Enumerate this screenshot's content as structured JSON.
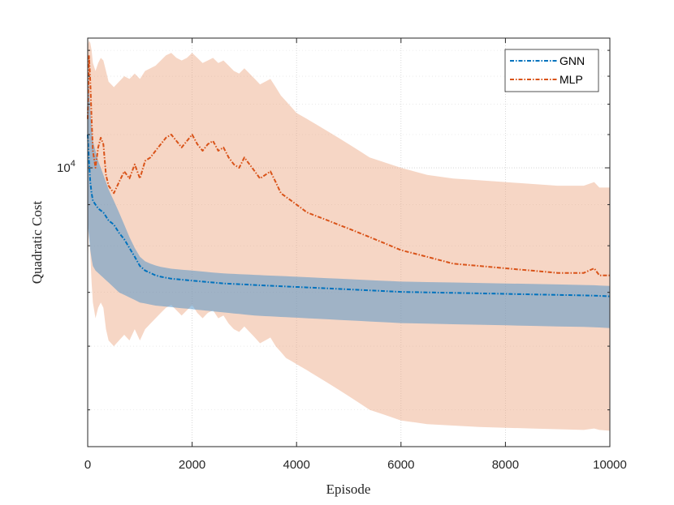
{
  "chart_data": {
    "type": "line",
    "title": "",
    "xlabel": "Episode",
    "ylabel": "Quadratic Cost",
    "xlim": [
      0,
      10000
    ],
    "yscale": "log",
    "ylim": [
      4500,
      14500
    ],
    "grid": true,
    "legend_position": "top-right",
    "x_ticks": [
      0,
      2000,
      4000,
      6000,
      8000,
      10000
    ],
    "x_tick_labels": [
      "0",
      "2000",
      "4000",
      "6000",
      "8000",
      "10000"
    ],
    "y_major_tick": 10000,
    "y_major_tick_label_base": "10",
    "y_major_tick_label_exp": "4",
    "y_minor_ticks": [
      5000,
      6000,
      7000,
      8000,
      9000,
      11000,
      12000,
      13000,
      14000
    ],
    "x": [
      0,
      25,
      50,
      75,
      100,
      150,
      200,
      250,
      300,
      350,
      400,
      500,
      600,
      700,
      800,
      900,
      1000,
      1100,
      1200,
      1300,
      1400,
      1500,
      1600,
      1700,
      1800,
      1900,
      2000,
      2100,
      2200,
      2300,
      2400,
      2500,
      2600,
      2700,
      2800,
      2900,
      3000,
      3100,
      3200,
      3300,
      3400,
      3500,
      3600,
      3700,
      3800,
      3900,
      4000,
      4200,
      4400,
      4600,
      4800,
      5000,
      5200,
      5400,
      5600,
      5800,
      6000,
      6500,
      7000,
      7500,
      8000,
      8500,
      9000,
      9500,
      9700,
      9800,
      10000
    ],
    "series": [
      {
        "name": "GNN",
        "color": "#0072BD",
        "band_color": "#4A90C8",
        "line_style": "dash-dot",
        "values": [
          11000,
          10200,
          9600,
          9300,
          9100,
          9000,
          8900,
          8850,
          8800,
          8700,
          8600,
          8500,
          8300,
          8150,
          7950,
          7750,
          7550,
          7450,
          7400,
          7350,
          7320,
          7300,
          7280,
          7270,
          7260,
          7250,
          7240,
          7230,
          7220,
          7210,
          7200,
          7190,
          7180,
          7175,
          7170,
          7165,
          7160,
          7155,
          7150,
          7145,
          7140,
          7135,
          7130,
          7125,
          7120,
          7115,
          7110,
          7100,
          7090,
          7080,
          7070,
          7060,
          7050,
          7040,
          7030,
          7020,
          7010,
          7000,
          6990,
          6980,
          6970,
          6960,
          6950,
          6940,
          6935,
          6930,
          6920
        ],
        "band_lower": [
          8500,
          8200,
          7900,
          7700,
          7550,
          7450,
          7400,
          7350,
          7300,
          7250,
          7200,
          7100,
          7000,
          6950,
          6900,
          6850,
          6800,
          6780,
          6760,
          6740,
          6730,
          6720,
          6710,
          6700,
          6690,
          6680,
          6670,
          6660,
          6650,
          6640,
          6630,
          6620,
          6610,
          6600,
          6590,
          6580,
          6570,
          6560,
          6550,
          6545,
          6540,
          6535,
          6530,
          6525,
          6520,
          6515,
          6510,
          6500,
          6490,
          6480,
          6470,
          6460,
          6450,
          6440,
          6430,
          6420,
          6410,
          6400,
          6390,
          6380,
          6370,
          6360,
          6350,
          6340,
          6335,
          6330,
          6320
        ],
        "band_upper": [
          13500,
          12500,
          11800,
          11200,
          10800,
          10500,
          10200,
          10000,
          9800,
          9600,
          9400,
          9100,
          8800,
          8500,
          8200,
          7950,
          7750,
          7650,
          7600,
          7560,
          7530,
          7510,
          7490,
          7480,
          7470,
          7460,
          7450,
          7440,
          7430,
          7420,
          7410,
          7400,
          7390,
          7385,
          7380,
          7375,
          7370,
          7365,
          7360,
          7355,
          7350,
          7345,
          7340,
          7335,
          7330,
          7325,
          7320,
          7310,
          7300,
          7290,
          7280,
          7270,
          7260,
          7250,
          7240,
          7230,
          7220,
          7210,
          7200,
          7190,
          7180,
          7170,
          7160,
          7150,
          7145,
          7140,
          7130
        ]
      },
      {
        "name": "MLP",
        "color": "#D95319",
        "band_color": "#EBA37E",
        "line_style": "dash-dot",
        "values": [
          11500,
          13800,
          12800,
          11500,
          10500,
          10000,
          10600,
          10900,
          10700,
          9800,
          9500,
          9300,
          9600,
          9900,
          9700,
          10100,
          9700,
          10200,
          10300,
          10500,
          10700,
          10900,
          11000,
          10800,
          10600,
          10800,
          11000,
          10700,
          10500,
          10700,
          10800,
          10500,
          10600,
          10300,
          10100,
          10000,
          10300,
          10100,
          9900,
          9700,
          9800,
          9900,
          9600,
          9300,
          9200,
          9100,
          9000,
          8800,
          8700,
          8600,
          8500,
          8400,
          8300,
          8200,
          8100,
          8000,
          7900,
          7750,
          7600,
          7550,
          7500,
          7450,
          7400,
          7400,
          7500,
          7350,
          7350
        ],
        "band_lower": [
          7500,
          8500,
          7800,
          7200,
          6800,
          6500,
          6700,
          6800,
          6700,
          6300,
          6100,
          6000,
          6100,
          6200,
          6100,
          6300,
          6100,
          6300,
          6400,
          6500,
          6600,
          6700,
          6750,
          6650,
          6550,
          6650,
          6750,
          6600,
          6500,
          6600,
          6650,
          6500,
          6550,
          6400,
          6300,
          6250,
          6350,
          6250,
          6150,
          6050,
          6100,
          6150,
          6000,
          5900,
          5800,
          5750,
          5700,
          5600,
          5500,
          5400,
          5300,
          5200,
          5100,
          5000,
          4950,
          4900,
          4850,
          4800,
          4780,
          4760,
          4750,
          4740,
          4730,
          4720,
          4740,
          4720,
          4710
        ],
        "band_upper": [
          14200,
          14400,
          14300,
          14000,
          13500,
          13200,
          13500,
          13700,
          13600,
          13200,
          12800,
          12600,
          12800,
          13000,
          12900,
          13100,
          12900,
          13200,
          13300,
          13400,
          13600,
          13800,
          13900,
          13700,
          13600,
          13700,
          13900,
          13700,
          13500,
          13600,
          13700,
          13500,
          13600,
          13400,
          13200,
          13100,
          13300,
          13100,
          12900,
          12700,
          12800,
          12900,
          12600,
          12300,
          12100,
          11900,
          11700,
          11500,
          11300,
          11100,
          10900,
          10700,
          10500,
          10300,
          10200,
          10100,
          10000,
          9800,
          9700,
          9650,
          9600,
          9550,
          9500,
          9500,
          9600,
          9450,
          9450
        ]
      }
    ]
  }
}
